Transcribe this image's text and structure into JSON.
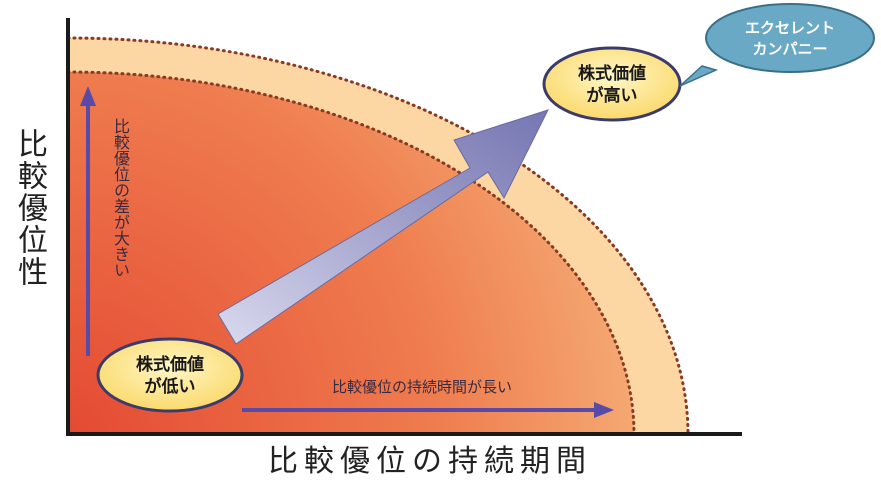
{
  "y_axis_label": "比較優位性",
  "x_axis_label": "比較優位の持続期間",
  "vertical_arrow_label": "比較優位の差が大きい",
  "horizontal_arrow_label": "比較優位の持続時間が長い",
  "start_bubble": {
    "line1": "株式価値",
    "line2": "が低い"
  },
  "end_bubble": {
    "line1": "株式価値",
    "line2": "が高い"
  },
  "callout": {
    "line1": "エクセレント",
    "line2": "カンパニー"
  },
  "colors": {
    "inner_gradient_start": "#e85a3a",
    "inner_gradient_end": "#f6b27e",
    "outer_band": "#fbd9a8",
    "arrow": "#8888bb",
    "axis_arrows": "#5a4aa8",
    "bubble_fill": "#fde89a",
    "bubble_border": "#3b3b6b",
    "callout_fill": "#6aa9c6"
  }
}
